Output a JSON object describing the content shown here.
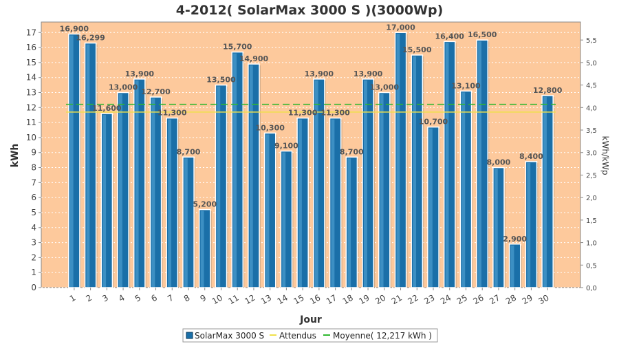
{
  "chart_data": {
    "type": "bar",
    "title": "4-2012( SolarMax 3000 S )(3000Wp)",
    "xlabel": "Jour",
    "ylabel": "kWh",
    "y2label": "kWh/kWp",
    "ylim": [
      0,
      17.7
    ],
    "y2lim": [
      0,
      5.9
    ],
    "categories": [
      "1",
      "2",
      "3",
      "4",
      "5",
      "6",
      "7",
      "8",
      "9",
      "10",
      "11",
      "12",
      "13",
      "14",
      "15",
      "16",
      "17",
      "18",
      "19",
      "20",
      "21",
      "22",
      "23",
      "24",
      "25",
      "26",
      "27",
      "28",
      "29",
      "30"
    ],
    "series": [
      {
        "name": "SolarMax 3000 S",
        "values": [
          16.9,
          16.299,
          11.6,
          13.0,
          13.9,
          12.7,
          11.3,
          8.7,
          5.2,
          13.5,
          15.7,
          14.9,
          10.3,
          9.1,
          11.3,
          13.9,
          11.3,
          8.7,
          13.9,
          13.0,
          17.0,
          15.5,
          10.7,
          16.4,
          13.1,
          16.5,
          8.0,
          2.9,
          8.4,
          12.8
        ],
        "labels": [
          "16,900",
          "16,299",
          "11,600",
          "13,000",
          "13,900",
          "12,700",
          "11,300",
          "8,700",
          "5,200",
          "13,500",
          "15,700",
          "14,900",
          "10,300",
          "9,100",
          "11,300",
          "13,900",
          "11,300",
          "8,700",
          "13,900",
          "13,000",
          "17,000",
          "15,500",
          "10,700",
          "16,400",
          "13,100",
          "16,500",
          "8,000",
          "2,900",
          "8,400",
          "12,800"
        ],
        "color": "#1a6fa8"
      }
    ],
    "lines": [
      {
        "name": "Attendus",
        "value": 11.7,
        "color": "#f0e04a"
      },
      {
        "name": "Moyenne( 12,217 kWh )",
        "value": 12.217,
        "color": "#2fb82f"
      }
    ],
    "yticks": [
      0,
      1,
      2,
      3,
      4,
      5,
      6,
      7,
      8,
      9,
      10,
      11,
      12,
      13,
      14,
      15,
      16,
      17
    ],
    "y2ticks": [
      "0,0",
      "0,5",
      "1,0",
      "1,5",
      "2,0",
      "2,5",
      "3,0",
      "3,5",
      "4,0",
      "4,5",
      "5,0",
      "5,5"
    ],
    "grid": true,
    "plot_background": "#fdc99c",
    "legend_position": "bottom"
  }
}
